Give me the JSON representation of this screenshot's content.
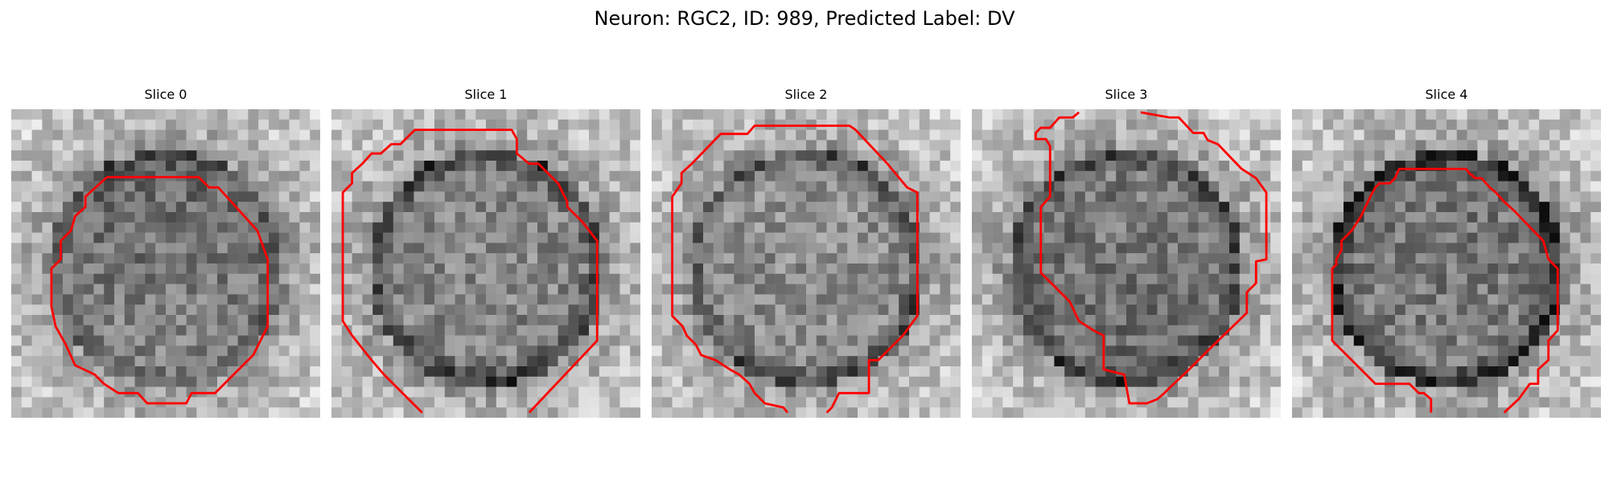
{
  "figure": {
    "title": "Neuron: RGC2, ID: 989, Predicted Label: DV"
  },
  "panels": [
    {
      "title": "Slice 0",
      "seed": 11,
      "darkness": [
        0.62,
        0.45
      ],
      "ring": 0.15
    },
    {
      "title": "Slice 1",
      "seed": 23,
      "darkness": [
        0.45,
        0.5
      ],
      "ring": 0.35
    },
    {
      "title": "Slice 2",
      "seed": 37,
      "darkness": [
        0.42,
        0.48
      ],
      "ring": 0.3
    },
    {
      "title": "Slice 3",
      "seed": 51,
      "darkness": [
        0.5,
        0.6
      ],
      "ring": 0.25
    },
    {
      "title": "Slice 4",
      "seed": 67,
      "darkness": [
        0.55,
        0.5
      ],
      "ring": 0.45
    }
  ],
  "contour_color": "#ff0000"
}
